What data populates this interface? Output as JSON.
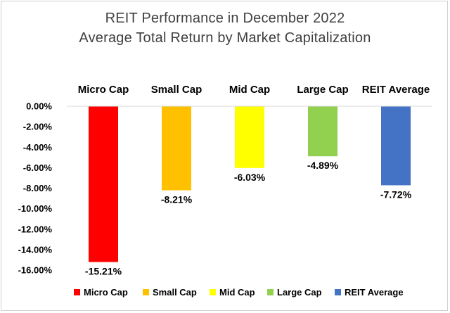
{
  "chart_data": {
    "type": "bar",
    "title_lines": [
      "REIT Performance in December 2022",
      "Average Total Return by Market Capitalization"
    ],
    "categories": [
      "Micro Cap",
      "Small Cap",
      "Mid Cap",
      "Large Cap",
      "REIT Average"
    ],
    "values": [
      -15.21,
      -8.21,
      -6.03,
      -4.89,
      -7.72
    ],
    "value_labels": [
      "-15.21%",
      "-8.21%",
      "-6.03%",
      "-4.89%",
      "-7.72%"
    ],
    "colors": [
      "#ff0000",
      "#ffc000",
      "#ffff00",
      "#92d050",
      "#4472c4"
    ],
    "ylim": [
      -16,
      0
    ],
    "yticks": [
      0,
      -2,
      -4,
      -6,
      -8,
      -10,
      -12,
      -14,
      -16
    ],
    "ytick_labels": [
      "0.00%",
      "-2.00%",
      "-4.00%",
      "-6.00%",
      "-8.00%",
      "-10.00%",
      "-12.00%",
      "-14.00%",
      "-16.00%"
    ],
    "category_labels_position": "top",
    "gridlines": false,
    "legend": {
      "position": "bottom",
      "entries": [
        "Micro Cap",
        "Small Cap",
        "Mid Cap",
        "Large Cap",
        "REIT Average"
      ]
    }
  }
}
